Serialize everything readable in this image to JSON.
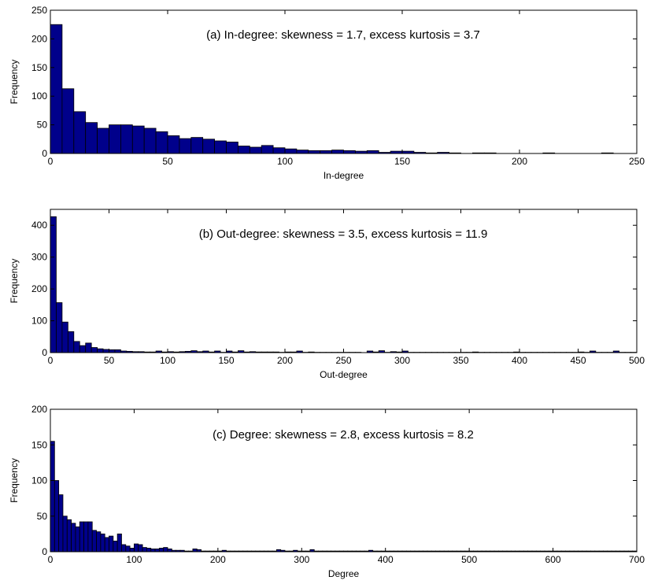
{
  "chart_data": [
    {
      "type": "bar",
      "title": "",
      "annotation": "(a) In-degree: skewness = 1.7, excess kurtosis = 3.7",
      "xlabel": "In-degree",
      "ylabel": "Frequency",
      "xlim": [
        0,
        250
      ],
      "ylim": [
        0,
        250
      ],
      "xticks": [
        0,
        50,
        100,
        150,
        200,
        250
      ],
      "yticks": [
        0,
        50,
        100,
        150,
        200,
        250
      ],
      "bin_width": 5,
      "bin_start": 0,
      "color": "#00008b",
      "values": [
        225,
        113,
        73,
        54,
        44,
        50,
        50,
        48,
        44,
        38,
        31,
        26,
        28,
        25,
        22,
        20,
        13,
        11,
        14,
        10,
        8,
        6,
        5,
        5,
        6,
        5,
        4,
        5,
        2,
        4,
        4,
        2,
        1,
        2,
        1,
        0,
        1,
        1,
        0,
        0,
        0,
        0,
        1,
        0,
        0,
        0,
        0,
        1
      ]
    },
    {
      "type": "bar",
      "title": "",
      "annotation": "(b) Out-degree: skewness = 3.5, excess kurtosis = 11.9",
      "xlabel": "Out-degree",
      "ylabel": "Frequency",
      "xlim": [
        0,
        500
      ],
      "ylim": [
        0,
        450
      ],
      "xticks": [
        0,
        50,
        100,
        150,
        200,
        250,
        300,
        350,
        400,
        450,
        500
      ],
      "yticks": [
        0,
        100,
        200,
        300,
        400
      ],
      "bin_width": 5,
      "bin_start": 0,
      "color": "#00008b",
      "values": [
        427,
        157,
        96,
        66,
        35,
        22,
        30,
        16,
        12,
        10,
        9,
        9,
        5,
        4,
        3,
        3,
        2,
        2,
        5,
        2,
        3,
        2,
        3,
        4,
        6,
        3,
        5,
        2,
        5,
        1,
        5,
        2,
        6,
        2,
        3,
        2,
        2,
        2,
        2,
        1,
        2,
        2,
        5,
        1,
        2,
        1,
        1,
        1,
        1,
        1,
        1,
        1,
        1,
        0,
        5,
        2,
        6,
        1,
        3,
        2,
        5,
        1,
        1,
        1,
        1,
        1,
        1,
        1,
        1,
        1,
        1,
        1,
        2,
        1,
        1,
        1,
        1,
        1,
        1,
        2,
        1,
        1,
        1,
        1,
        1,
        1,
        1,
        1,
        1,
        1,
        2,
        1,
        5,
        1,
        1,
        1,
        5,
        1,
        1,
        1
      ]
    },
    {
      "type": "bar",
      "title": "",
      "annotation": "(c) Degree: skewness = 2.8, excess kurtosis = 8.2",
      "xlabel": "Degree",
      "ylabel": "Frequency",
      "xlim": [
        0,
        700
      ],
      "ylim": [
        0,
        200
      ],
      "xticks": [
        0,
        100,
        200,
        300,
        400,
        500,
        600,
        700
      ],
      "yticks": [
        0,
        50,
        100,
        150,
        200
      ],
      "bin_width": 5,
      "bin_start": 0,
      "color": "#00008b",
      "values": [
        155,
        100,
        80,
        50,
        45,
        40,
        35,
        42,
        42,
        42,
        30,
        28,
        25,
        20,
        22,
        15,
        25,
        10,
        8,
        5,
        11,
        10,
        6,
        5,
        4,
        4,
        5,
        6,
        4,
        2,
        2,
        2,
        1,
        1,
        4,
        3,
        1,
        1,
        1,
        1,
        1,
        2,
        1,
        1,
        1,
        1,
        1,
        1,
        1,
        1,
        1,
        1,
        1,
        1,
        3,
        2,
        1,
        1,
        2,
        1,
        1,
        1,
        3,
        1,
        1,
        1,
        1,
        1,
        1,
        1,
        1,
        1,
        1,
        1,
        1,
        1,
        2,
        1,
        1,
        1,
        1,
        1,
        1,
        1,
        1,
        1,
        1,
        1,
        1,
        1,
        1,
        1,
        1,
        1,
        1,
        1,
        1,
        1,
        1,
        1,
        1,
        1,
        1,
        1,
        1,
        1,
        1,
        1,
        1,
        1,
        1,
        1,
        1,
        1,
        1,
        1,
        1,
        1,
        1,
        1,
        1,
        1,
        1,
        1,
        1,
        1,
        1,
        1,
        1,
        1,
        1,
        1,
        1,
        1,
        1,
        1,
        1,
        1,
        1,
        1
      ]
    }
  ]
}
